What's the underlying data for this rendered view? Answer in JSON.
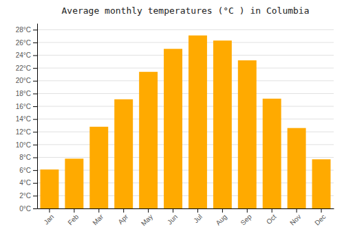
{
  "chart_data": {
    "type": "bar",
    "title": "Average monthly temperatures (°C ) in Columbia",
    "categories": [
      "Jan",
      "Feb",
      "Mar",
      "Apr",
      "May",
      "Jun",
      "Jul",
      "Aug",
      "Sep",
      "Oct",
      "Nov",
      "Dec"
    ],
    "values": [
      6.1,
      7.8,
      12.8,
      17.1,
      21.4,
      25.0,
      27.1,
      26.3,
      23.2,
      17.2,
      12.6,
      7.7
    ],
    "color": "#FFAA00",
    "ylim": [
      0,
      29
    ],
    "yticks": [
      {
        "value": 0,
        "label": "0°C"
      },
      {
        "value": 2,
        "label": "2°C"
      },
      {
        "value": 4,
        "label": "4°C"
      },
      {
        "value": 6,
        "label": "6°C"
      },
      {
        "value": 8,
        "label": "8°C"
      },
      {
        "value": 10,
        "label": "10°C"
      },
      {
        "value": 12,
        "label": "12°C"
      },
      {
        "value": 14,
        "label": "14°C"
      },
      {
        "value": 16,
        "label": "16°C"
      },
      {
        "value": 18,
        "label": "18°C"
      },
      {
        "value": 20,
        "label": "20°C"
      },
      {
        "value": 22,
        "label": "22°C"
      },
      {
        "value": 24,
        "label": "24°C"
      },
      {
        "value": 26,
        "label": "26°C"
      },
      {
        "value": 28,
        "label": "28°C"
      }
    ],
    "grid": true
  }
}
